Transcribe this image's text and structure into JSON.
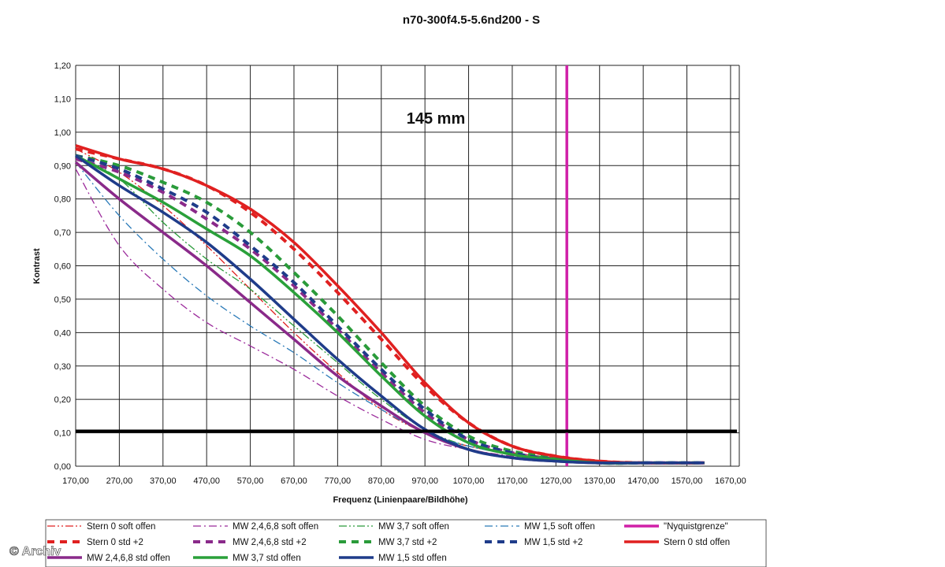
{
  "chart_data": {
    "type": "line",
    "title": "n70-300f4.5-5.6nd200 - S",
    "annotation": "145 mm",
    "xlabel": "Frequenz (Linienpaare/Bildhöhe)",
    "ylabel": "Kontrast",
    "xlim": [
      170,
      1690
    ],
    "ylim": [
      0,
      1.2
    ],
    "x_ticks": [
      "170,00",
      "270,00",
      "370,00",
      "470,00",
      "570,00",
      "670,00",
      "770,00",
      "870,00",
      "970,00",
      "1070,00",
      "1170,00",
      "1270,00",
      "1370,00",
      "1470,00",
      "1570,00",
      "1670,00"
    ],
    "y_ticks": [
      "0,00",
      "0,10",
      "0,20",
      "0,30",
      "0,40",
      "0,50",
      "0,60",
      "0,70",
      "0,80",
      "0,90",
      "1,00",
      "1,10",
      "1,20"
    ],
    "x": [
      170,
      270,
      370,
      470,
      570,
      670,
      770,
      870,
      970,
      1070,
      1170,
      1270,
      1370,
      1470,
      1610
    ],
    "series": [
      {
        "name": "Stern 0 soft offen",
        "color": "#e02020",
        "style": "dashdotdot",
        "width": 1.3,
        "values": [
          0.95,
          0.88,
          0.78,
          0.66,
          0.53,
          0.4,
          0.28,
          0.17,
          0.1,
          0.06,
          0.04,
          0.025,
          0.015,
          0.01,
          0.01
        ]
      },
      {
        "name": "MW 2,4,6,8 soft offen",
        "color": "#9b2a9b",
        "style": "dashdot",
        "width": 1.3,
        "values": [
          0.89,
          0.66,
          0.53,
          0.43,
          0.36,
          0.29,
          0.21,
          0.14,
          0.08,
          0.05,
          0.03,
          0.02,
          0.01,
          0.01,
          0.01
        ]
      },
      {
        "name": "MW 3,7 soft offen",
        "color": "#2a9b3a",
        "style": "dashdotdot",
        "width": 1.3,
        "values": [
          0.93,
          0.86,
          0.73,
          0.62,
          0.53,
          0.42,
          0.31,
          0.2,
          0.11,
          0.06,
          0.04,
          0.025,
          0.015,
          0.01,
          0.01
        ]
      },
      {
        "name": "MW 1,5 soft offen",
        "color": "#2a7ab8",
        "style": "dashdot",
        "width": 1.3,
        "values": [
          0.91,
          0.75,
          0.62,
          0.51,
          0.42,
          0.34,
          0.25,
          0.17,
          0.1,
          0.06,
          0.035,
          0.02,
          0.01,
          0.01,
          0.01
        ]
      },
      {
        "name": "\"Nyquistgrenze\"",
        "color": "#d020a8",
        "style": "solid",
        "width": 3.5,
        "vertical_at": 1295
      },
      {
        "name": "Stern 0 std +2",
        "color": "#e02020",
        "style": "dash",
        "width": 4,
        "values": [
          0.95,
          0.92,
          0.89,
          0.84,
          0.76,
          0.65,
          0.52,
          0.38,
          0.24,
          0.13,
          0.06,
          0.03,
          0.015,
          0.01,
          0.01
        ]
      },
      {
        "name": "MW 2,4,6,8 std +2",
        "color": "#8a2a8a",
        "style": "dash",
        "width": 4,
        "values": [
          0.92,
          0.88,
          0.82,
          0.74,
          0.65,
          0.54,
          0.41,
          0.28,
          0.16,
          0.08,
          0.04,
          0.02,
          0.01,
          0.01,
          0.01
        ]
      },
      {
        "name": "MW 3,7 std +2",
        "color": "#2a9b3a",
        "style": "dash",
        "width": 4,
        "values": [
          0.93,
          0.9,
          0.85,
          0.79,
          0.7,
          0.58,
          0.45,
          0.31,
          0.18,
          0.09,
          0.045,
          0.025,
          0.01,
          0.01,
          0.01
        ]
      },
      {
        "name": "MW 1,5 std +2",
        "color": "#1f3c8a",
        "style": "dash",
        "width": 4,
        "values": [
          0.93,
          0.89,
          0.83,
          0.76,
          0.66,
          0.55,
          0.42,
          0.29,
          0.17,
          0.08,
          0.04,
          0.02,
          0.01,
          0.01,
          0.01
        ]
      },
      {
        "name": "Stern 0 std offen",
        "color": "#e02020",
        "style": "solid",
        "width": 3.5,
        "values": [
          0.96,
          0.92,
          0.89,
          0.84,
          0.77,
          0.67,
          0.54,
          0.4,
          0.25,
          0.13,
          0.06,
          0.03,
          0.015,
          0.01,
          0.01
        ]
      },
      {
        "name": "MW 2,4,6,8 std offen",
        "color": "#8a2a8a",
        "style": "solid",
        "width": 3.5,
        "values": [
          0.91,
          0.8,
          0.7,
          0.6,
          0.49,
          0.38,
          0.27,
          0.18,
          0.1,
          0.05,
          0.025,
          0.015,
          0.01,
          0.01,
          0.01
        ]
      },
      {
        "name": "MW 3,7 std offen",
        "color": "#2aa03a",
        "style": "solid",
        "width": 3.5,
        "values": [
          0.93,
          0.86,
          0.79,
          0.71,
          0.63,
          0.52,
          0.4,
          0.27,
          0.15,
          0.07,
          0.035,
          0.02,
          0.01,
          0.01,
          0.01
        ]
      },
      {
        "name": "MW 1,5 std offen",
        "color": "#1f3c8a",
        "style": "solid",
        "width": 3.5,
        "values": [
          0.93,
          0.84,
          0.76,
          0.67,
          0.56,
          0.44,
          0.32,
          0.21,
          0.11,
          0.05,
          0.025,
          0.015,
          0.01,
          0.01,
          0.01
        ]
      }
    ],
    "reference_line": {
      "y": 0.105,
      "color": "#000000"
    },
    "grid": true
  },
  "watermark": "© Archiv"
}
